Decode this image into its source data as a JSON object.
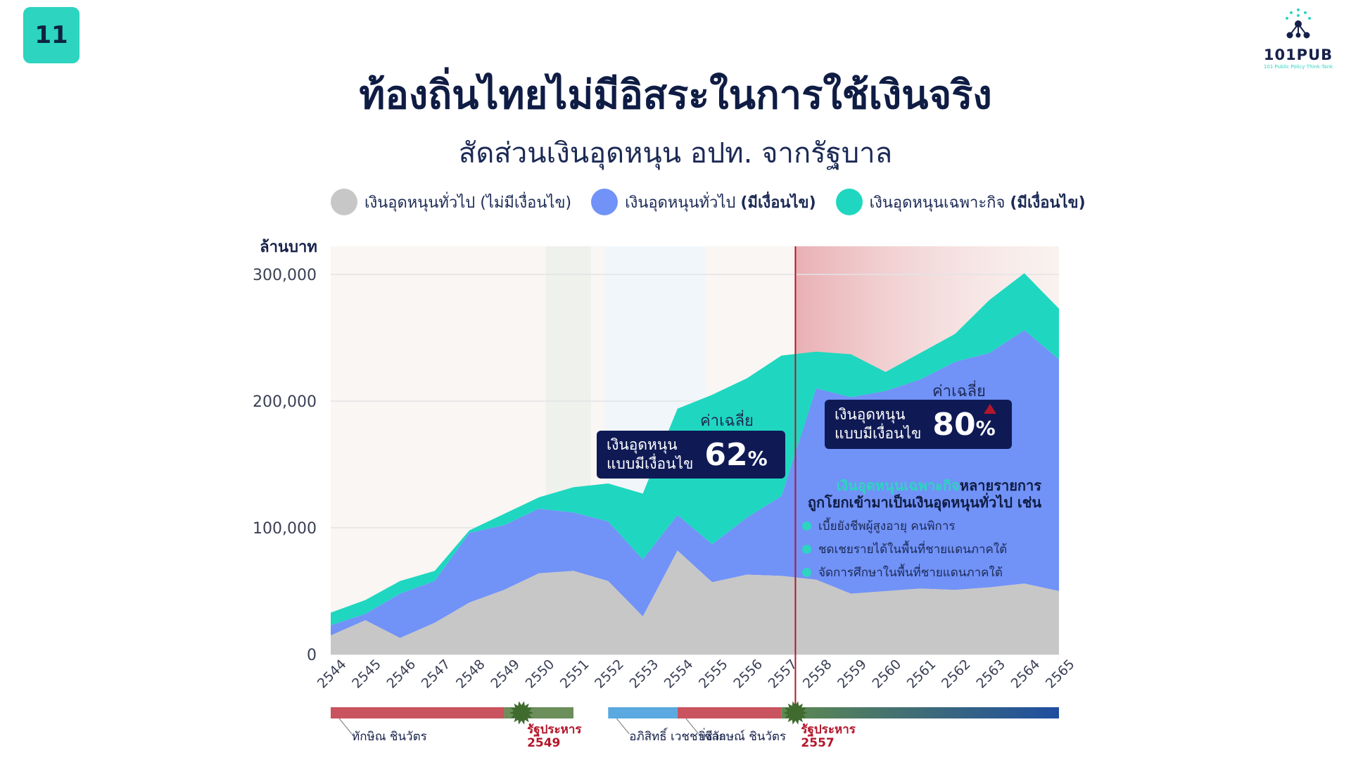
{
  "page": {
    "number": "11"
  },
  "logo": {
    "text": "101PUB",
    "sub": "101 Public Policy Think Tank"
  },
  "title": "ท้องถิ่นไทยไม่มีอิสระในการใช้เงินจริง",
  "subtitle": "สัดส่วนเงินอุดหนุน อปท. จากรัฐบาล",
  "legend": [
    {
      "label": "เงินอุดหนุนทั่วไป",
      "bold": "(ไม่มีเงื่อนไข)",
      "color": "#c7c7c7"
    },
    {
      "label": "เงินอุดหนุนทั่วไป",
      "bold": "(มีเงื่อนไข)",
      "color": "#7192f7"
    },
    {
      "label": "เงินอุดหนุนเฉพาะกิจ",
      "bold": "(มีเงื่อนไข)",
      "color": "#1fd7c0"
    }
  ],
  "colors": {
    "base": "#c7c7c7",
    "general_conditional": "#7192f7",
    "specific": "#1fd7c0",
    "accent_red": "#b3172b",
    "navy": "#0f1a55"
  },
  "callouts": [
    {
      "avg_label": "ค่าเฉลี่ย",
      "label": "เงินอุดหนุน\nแบบมีเงื่อนไข",
      "value": "62",
      "unit": "%"
    },
    {
      "avg_label": "ค่าเฉลี่ย",
      "label": "เงินอุดหนุน\nแบบมีเงื่อนไข",
      "value": "80",
      "unit": "%"
    }
  ],
  "note": {
    "highlight": "เงินอุดหนุนเฉพาะกิจ",
    "line1_rest": "หลายรายการ",
    "line2": "ถูกโยกเข้ามาเป็นเงินอุดหนุนทั่วไป เช่น",
    "items": [
      "เบี้ยยังชีพผู้สูงอายุ คนพิการ",
      "ชดเชยรายได้ในพื้นที่ชายแดนภาคใต้",
      "จัดการศึกษาในพื้นที่ชายแดนภาคใต้"
    ]
  },
  "chart_data": {
    "type": "area",
    "stacked": true,
    "ylabel": "ล้านบาท",
    "ylim": [
      0,
      300000
    ],
    "yticks": [
      0,
      100000,
      200000,
      300000
    ],
    "ytick_labels": [
      "0",
      "100,000",
      "200,000",
      "300,000"
    ],
    "x": [
      "2544",
      "2545",
      "2546",
      "2547",
      "2548",
      "2549",
      "2550",
      "2551",
      "2552",
      "2553",
      "2554",
      "2555",
      "2556",
      "2557",
      "2558",
      "2559",
      "2560",
      "2561",
      "2562",
      "2563",
      "2564",
      "2565"
    ],
    "totals": [
      33000,
      43000,
      58000,
      66000,
      98000,
      111000,
      124000,
      132000,
      135000,
      127000,
      194000,
      205000,
      218000,
      236000,
      239000,
      237000,
      223000,
      238000,
      253000,
      280000,
      301000,
      273000
    ],
    "series": [
      {
        "name": "เงินอุดหนุนทั่วไป (ไม่มีเงื่อนไข)",
        "values": [
          15000,
          27000,
          13000,
          25000,
          41000,
          51000,
          64000,
          66000,
          58000,
          30000,
          82000,
          57000,
          63000,
          62000,
          59000,
          48000,
          50000,
          52000,
          51000,
          53000,
          56000,
          50000
        ]
      },
      {
        "name": "เงินอุดหนุนทั่วไป (มีเงื่อนไข)",
        "values": [
          8000,
          5000,
          35000,
          33000,
          55000,
          51000,
          51000,
          46000,
          47000,
          45000,
          28000,
          30000,
          45000,
          63000,
          151000,
          155000,
          158000,
          165000,
          180000,
          185000,
          200000,
          183000
        ]
      },
      {
        "name": "เงินอุดหนุนเฉพาะกิจ (มีเงื่อนไข)",
        "values": [
          10000,
          11000,
          10000,
          8000,
          2000,
          9000,
          9000,
          20000,
          30000,
          52000,
          84000,
          118000,
          110000,
          111000,
          29000,
          34000,
          15000,
          21000,
          22000,
          42000,
          45000,
          40000
        ]
      }
    ],
    "periods": [
      {
        "label": "ทักษิณ ชินวัตร",
        "from": "2544",
        "to": "2549",
        "color": "#c9535e"
      },
      {
        "label": "",
        "from": "2549",
        "to": "2551",
        "color": "#6b8e5a"
      },
      {
        "label": "อภิสิทธิ์ เวชชาชีวะ",
        "from": "2552",
        "to": "2554",
        "color": "#5aa9e0"
      },
      {
        "label": "ยิ่งลักษณ์ ชินวัตร",
        "from": "2554",
        "to": "2557",
        "color": "#c9535e"
      },
      {
        "label": "",
        "from": "2557",
        "to": "2565",
        "color": "#2a5a8c"
      }
    ],
    "coups": [
      {
        "label": "รัฐประหาร",
        "year_label": "2549",
        "at": "2549.5"
      },
      {
        "label": "รัฐประหาร",
        "year_label": "2557",
        "at": "2557.4"
      }
    ],
    "marker_line": "2557.4"
  }
}
